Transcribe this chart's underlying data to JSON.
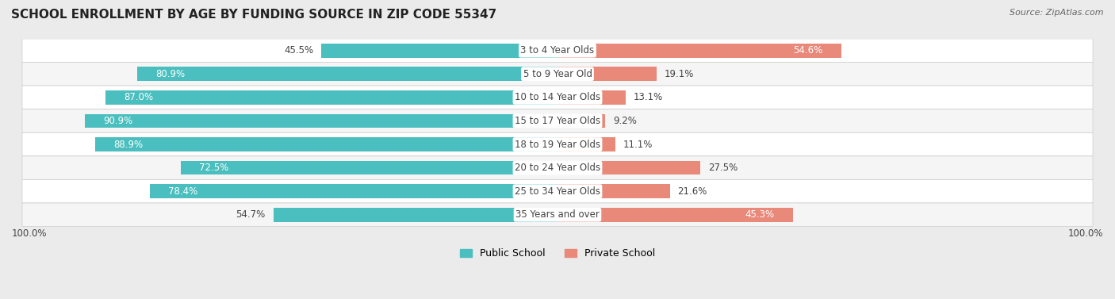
{
  "title": "SCHOOL ENROLLMENT BY AGE BY FUNDING SOURCE IN ZIP CODE 55347",
  "source": "Source: ZipAtlas.com",
  "categories": [
    "3 to 4 Year Olds",
    "5 to 9 Year Old",
    "10 to 14 Year Olds",
    "15 to 17 Year Olds",
    "18 to 19 Year Olds",
    "20 to 24 Year Olds",
    "25 to 34 Year Olds",
    "35 Years and over"
  ],
  "public_values": [
    45.5,
    80.9,
    87.0,
    90.9,
    88.9,
    72.5,
    78.4,
    54.7
  ],
  "private_values": [
    54.6,
    19.1,
    13.1,
    9.2,
    11.1,
    27.5,
    21.6,
    45.3
  ],
  "public_color": "#4bbfbf",
  "private_color": "#e8897a",
  "label_color_white": "#ffffff",
  "label_color_dark": "#444444",
  "bg_color": "#ebebeb",
  "row_bg_even": "#ffffff",
  "row_bg_odd": "#f5f5f5",
  "bar_height": 0.6,
  "title_fontsize": 11,
  "label_fontsize": 8.5,
  "cat_fontsize": 8.5,
  "legend_fontsize": 9,
  "source_fontsize": 8,
  "xlim": 105,
  "white_label_threshold_pub": 55,
  "white_label_threshold_priv": 40
}
